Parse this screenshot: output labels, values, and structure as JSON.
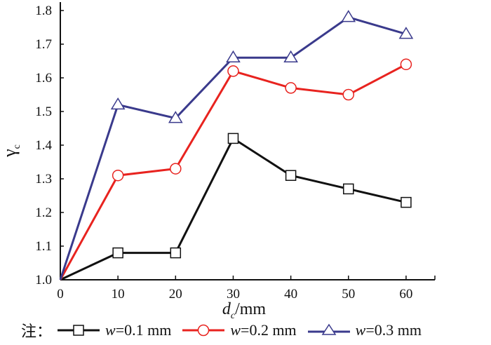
{
  "chart_data": {
    "type": "line",
    "title": "",
    "xlabel_main": "d",
    "xlabel_sub": "c",
    "xlabel_unit": "/mm",
    "ylabel_main": "γ",
    "ylabel_sub": "c",
    "xlim": [
      0,
      65
    ],
    "ylim": [
      1.0,
      1.84
    ],
    "xticks": [
      0,
      10,
      20,
      30,
      40,
      50,
      60
    ],
    "xtick_labels": [
      "0",
      "10",
      "20",
      "30",
      "40",
      "50",
      "60"
    ],
    "yticks": [
      1.0,
      1.1,
      1.2,
      1.3,
      1.4,
      1.5,
      1.6,
      1.7,
      1.8
    ],
    "ytick_labels": [
      "1.0",
      "1.1",
      "1.2",
      "1.3",
      "1.4",
      "1.5",
      "1.6",
      "1.7",
      "1.8"
    ],
    "grid": false,
    "x": [
      0,
      10,
      20,
      30,
      40,
      50,
      60
    ],
    "series": [
      {
        "name": "w=0.1 mm",
        "var": "w",
        "label_rest": "=0.1 mm",
        "color": "#111111",
        "marker": "square",
        "values": [
          1.0,
          1.08,
          1.08,
          1.42,
          1.31,
          1.27,
          1.23
        ]
      },
      {
        "name": "w=0.2 mm",
        "var": "w",
        "label_rest": "=0.2 mm",
        "color": "#e8231f",
        "marker": "circle",
        "values": [
          1.0,
          1.31,
          1.33,
          1.62,
          1.57,
          1.55,
          1.64
        ]
      },
      {
        "name": "w=0.3 mm",
        "var": "w",
        "label_rest": "=0.3 mm",
        "color": "#3a3a8c",
        "marker": "triangle",
        "values": [
          1.0,
          1.52,
          1.48,
          1.66,
          1.66,
          1.78,
          1.73
        ]
      }
    ],
    "legend_prefix": "注：",
    "legend_position": "bottom"
  }
}
